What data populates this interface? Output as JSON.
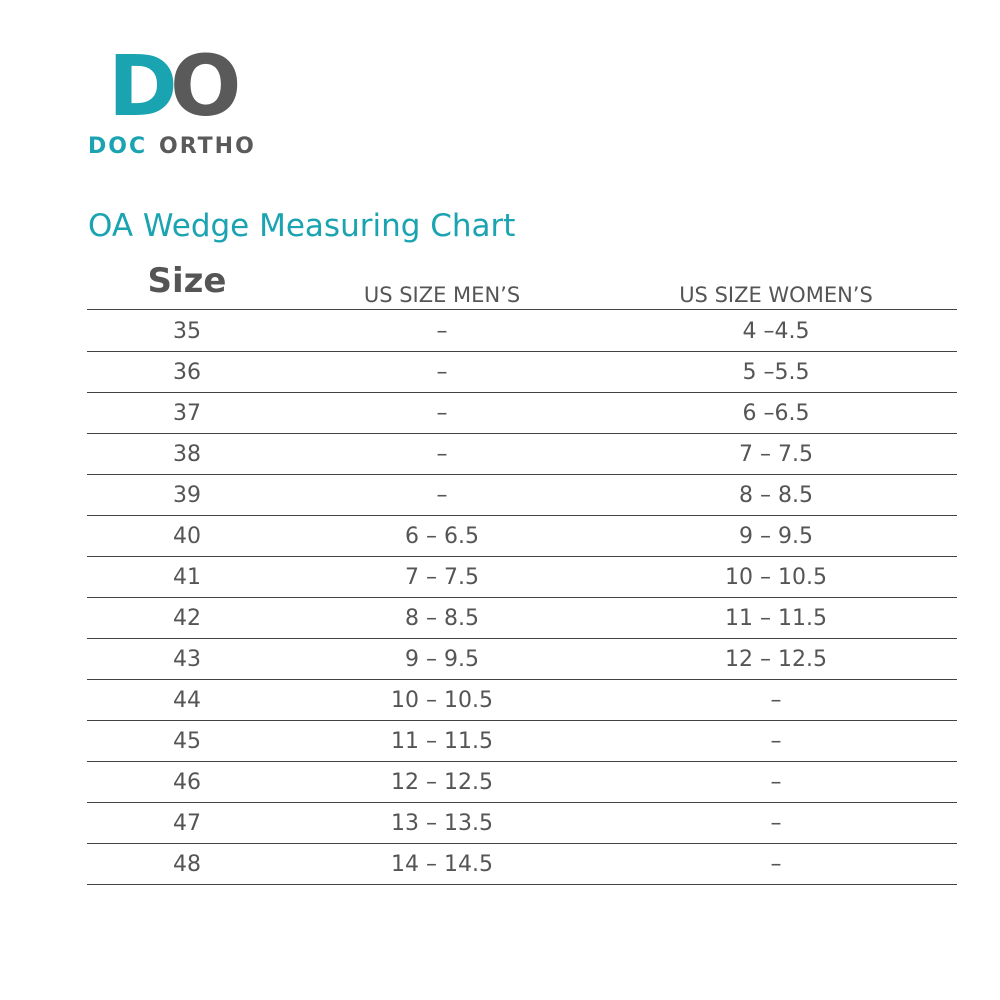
{
  "logo": {
    "mark_d": "D",
    "mark_o": "O",
    "word_doc": "DOC",
    "word_ortho": "ORTHO"
  },
  "title": "OA Wedge Measuring Chart",
  "table": {
    "headers": [
      "Size",
      "US SIZE MEN’S",
      "US SIZE WOMEN’S"
    ],
    "rows": [
      [
        "35",
        "–",
        "4 –4.5"
      ],
      [
        "36",
        "–",
        "5 –5.5"
      ],
      [
        "37",
        "–",
        "6 –6.5"
      ],
      [
        "38",
        "–",
        "7 – 7.5"
      ],
      [
        "39",
        "–",
        "8 – 8.5"
      ],
      [
        "40",
        "6 – 6.5",
        "9 – 9.5"
      ],
      [
        "41",
        "7 – 7.5",
        "10 – 10.5"
      ],
      [
        "42",
        "8 – 8.5",
        "11 – 11.5"
      ],
      [
        "43",
        "9 – 9.5",
        "12 – 12.5"
      ],
      [
        "44",
        "10 – 10.5",
        "–"
      ],
      [
        "45",
        "11 – 11.5",
        "–"
      ],
      [
        "46",
        "12 – 12.5",
        "–"
      ],
      [
        "47",
        "13 – 13.5",
        "–"
      ],
      [
        "48",
        "14 – 14.5",
        "–"
      ]
    ]
  }
}
